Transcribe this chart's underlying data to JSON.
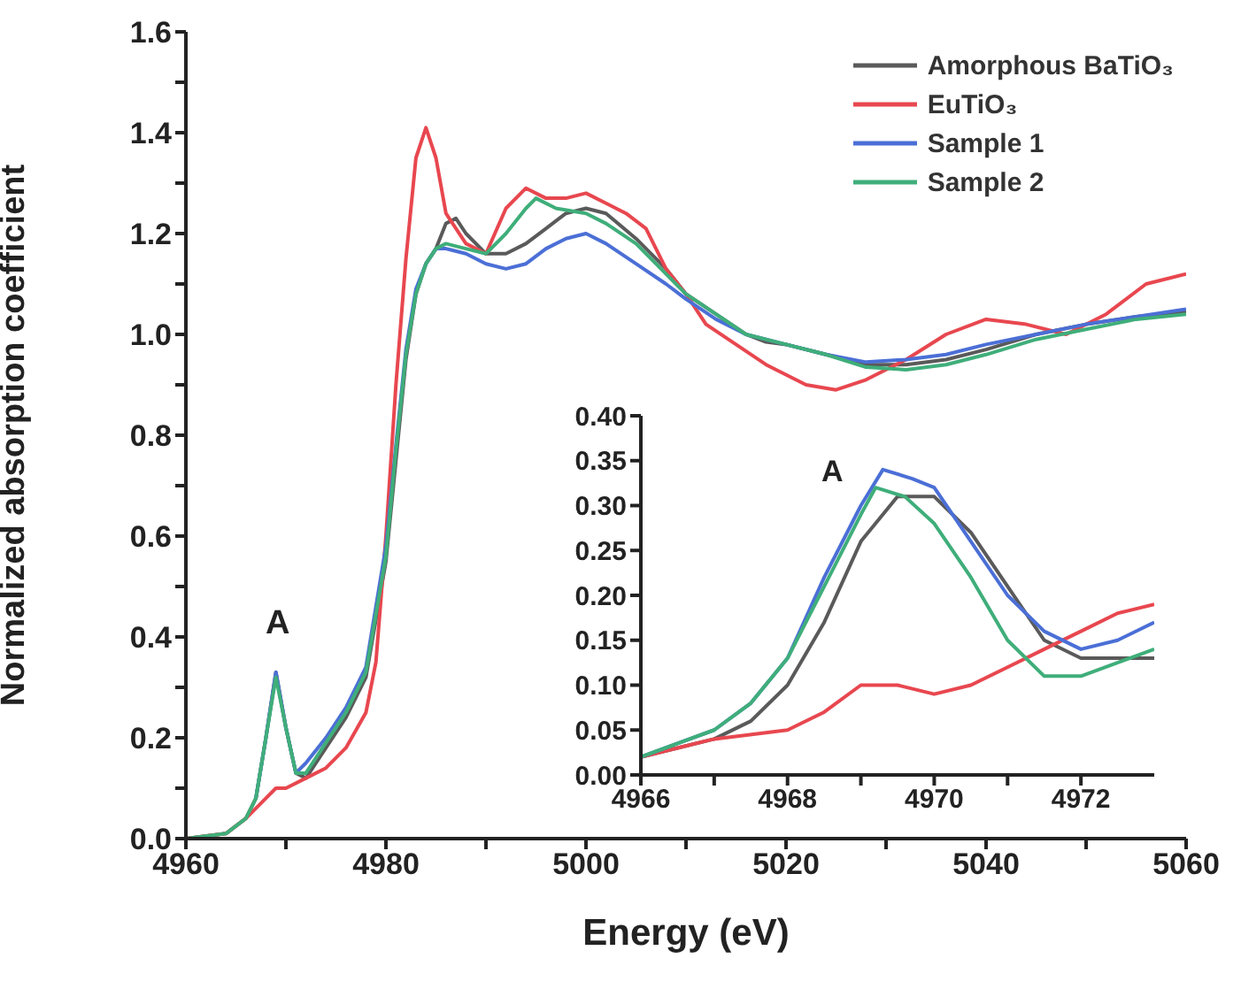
{
  "chart_data": [
    {
      "type": "line",
      "xlabel": "Energy (eV)",
      "ylabel": "Normalized  absorption coefficient",
      "xlim": [
        4960,
        5060
      ],
      "ylim": [
        0,
        1.6
      ],
      "xticks": [
        4960,
        {
          "value": 4970,
          "label": null
        },
        4980,
        {
          "value": 4990,
          "label": null
        },
        5000,
        {
          "value": 5010,
          "label": null
        },
        5020,
        {
          "value": 5030,
          "label": null
        },
        5040,
        {
          "value": 5050,
          "label": null
        },
        5060
      ],
      "yticks": [
        {
          "value": 0,
          "label": "0.0"
        },
        {
          "value": 0.1,
          "label": null
        },
        0.2,
        {
          "value": 0.3,
          "label": null
        },
        0.4,
        {
          "value": 0.5,
          "label": null
        },
        0.6,
        {
          "value": 0.7,
          "label": null
        },
        0.8,
        {
          "value": 0.9,
          "label": null
        },
        {
          "value": 1,
          "label": "1.0"
        },
        {
          "value": 1.1,
          "label": null
        },
        1.2,
        {
          "value": 1.3,
          "label": null
        },
        1.4,
        {
          "value": 1.5,
          "label": null
        },
        1.6
      ],
      "grid": false,
      "legend": "top right",
      "marker": "none",
      "line_style": "solid",
      "annotations": [
        "A"
      ],
      "series": [
        {
          "name": "Amorphous BaTiO₃",
          "color": "#5a5a5a",
          "x": [
            4960,
            4964,
            4966,
            4967,
            4968,
            4969,
            4970,
            4971,
            4972,
            4974,
            4976,
            4978,
            4980,
            4981,
            4982,
            4983,
            4984,
            4985,
            4986,
            4987,
            4988,
            4990,
            4992,
            4994,
            4996,
            4998,
            5000,
            5002,
            5005,
            5008,
            5010,
            5013,
            5016,
            5018,
            5020,
            5024,
            5028,
            5032,
            5036,
            5040,
            5045,
            5050,
            5055,
            5060
          ],
          "values": [
            0,
            0.01,
            0.04,
            0.08,
            0.2,
            0.33,
            0.22,
            0.13,
            0.12,
            0.18,
            0.24,
            0.32,
            0.55,
            0.75,
            0.95,
            1.08,
            1.14,
            1.17,
            1.22,
            1.23,
            1.2,
            1.16,
            1.16,
            1.18,
            1.21,
            1.24,
            1.25,
            1.24,
            1.19,
            1.13,
            1.08,
            1.04,
            1,
            0.985,
            0.98,
            0.96,
            0.94,
            0.94,
            0.95,
            0.97,
            1,
            1.02,
            1.035,
            1.045
          ]
        },
        {
          "name": "EuTiO₃",
          "color": "#e8474f",
          "x": [
            4960,
            4964,
            4966,
            4968,
            4969,
            4970,
            4972,
            4974,
            4976,
            4978,
            4979,
            4980,
            4981,
            4982,
            4983,
            4984,
            4985,
            4986,
            4988,
            4990,
            4992,
            4994,
            4996,
            4998,
            5000,
            5002,
            5004,
            5006,
            5008,
            5010,
            5012,
            5015,
            5018,
            5022,
            5025,
            5028,
            5032,
            5036,
            5040,
            5044,
            5048,
            5052,
            5056,
            5060
          ],
          "values": [
            0,
            0.01,
            0.04,
            0.08,
            0.1,
            0.1,
            0.12,
            0.14,
            0.18,
            0.25,
            0.35,
            0.6,
            0.9,
            1.15,
            1.35,
            1.41,
            1.35,
            1.24,
            1.18,
            1.16,
            1.25,
            1.29,
            1.27,
            1.27,
            1.28,
            1.26,
            1.24,
            1.21,
            1.13,
            1.08,
            1.02,
            0.98,
            0.94,
            0.9,
            0.89,
            0.91,
            0.95,
            1,
            1.03,
            1.02,
            1,
            1.04,
            1.1,
            1.12
          ]
        },
        {
          "name": "Sample 1",
          "color": "#4b6fd6",
          "x": [
            4967,
            4968,
            4969,
            4970,
            4971,
            4972,
            4974,
            4976,
            4978,
            4980,
            4981,
            4982,
            4983,
            4984,
            4985,
            4986,
            4988,
            4990,
            4992,
            4994,
            4996,
            4998,
            5000,
            5002,
            5005,
            5008,
            5010,
            5013,
            5016,
            5020,
            5024,
            5028,
            5032,
            5036,
            5040,
            5045,
            5050,
            5055,
            5060
          ],
          "values": [
            0.08,
            0.2,
            0.33,
            0.22,
            0.13,
            0.15,
            0.2,
            0.26,
            0.34,
            0.58,
            0.78,
            0.97,
            1.09,
            1.14,
            1.17,
            1.17,
            1.16,
            1.14,
            1.13,
            1.14,
            1.17,
            1.19,
            1.2,
            1.18,
            1.14,
            1.1,
            1.07,
            1.03,
            1,
            0.98,
            0.96,
            0.945,
            0.95,
            0.96,
            0.98,
            1,
            1.02,
            1.035,
            1.05
          ]
        },
        {
          "name": "Sample 2",
          "color": "#3fae7a",
          "x": [
            4960,
            4964,
            4966,
            4967,
            4968,
            4969,
            4970,
            4971,
            4972,
            4974,
            4976,
            4978,
            4980,
            4981,
            4982,
            4983,
            4984,
            4985,
            4986,
            4988,
            4990,
            4992,
            4994,
            4995,
            4997,
            5000,
            5002,
            5005,
            5008,
            5010,
            5013,
            5016,
            5020,
            5024,
            5028,
            5032,
            5036,
            5040,
            5045,
            5050,
            5055,
            5060
          ],
          "values": [
            0,
            0.01,
            0.04,
            0.08,
            0.2,
            0.32,
            0.22,
            0.13,
            0.13,
            0.19,
            0.25,
            0.33,
            0.56,
            0.77,
            0.96,
            1.08,
            1.14,
            1.17,
            1.18,
            1.17,
            1.16,
            1.2,
            1.25,
            1.27,
            1.25,
            1.24,
            1.22,
            1.18,
            1.12,
            1.08,
            1.04,
            1,
            0.98,
            0.96,
            0.935,
            0.93,
            0.94,
            0.96,
            0.99,
            1.01,
            1.03,
            1.04
          ]
        }
      ]
    },
    {
      "type": "line",
      "xlim": [
        4966,
        4973
      ],
      "ylim": [
        0,
        0.4
      ],
      "xticks": [
        4966,
        {
          "value": 4967,
          "label": null
        },
        4968,
        {
          "value": 4969,
          "label": null
        },
        4970,
        {
          "value": 4971,
          "label": null
        },
        4972
      ],
      "yticks": [
        {
          "value": 0,
          "label": "0.00"
        },
        {
          "value": 0.05,
          "label": "0.05"
        },
        {
          "value": 0.1,
          "label": "0.10"
        },
        {
          "value": 0.15,
          "label": "0.15"
        },
        {
          "value": 0.2,
          "label": "0.20"
        },
        {
          "value": 0.25,
          "label": "0.25"
        },
        {
          "value": 0.3,
          "label": "0.30"
        },
        {
          "value": 0.35,
          "label": "0.35"
        },
        {
          "value": 0.4,
          "label": "0.40"
        }
      ],
      "grid": false,
      "marker": "none",
      "line_style": "solid",
      "annotations": [
        "A"
      ],
      "series": [
        {
          "color": "#5a5a5a",
          "x": [
            4966,
            4967,
            4967.5,
            4968,
            4968.5,
            4969,
            4969.5,
            4970,
            4970.5,
            4971,
            4971.5,
            4972,
            4973
          ],
          "values": [
            0.02,
            0.04,
            0.06,
            0.1,
            0.17,
            0.26,
            0.31,
            0.31,
            0.27,
            0.21,
            0.15,
            0.13,
            0.13
          ]
        },
        {
          "color": "#e8474f",
          "x": [
            4966,
            4967,
            4968,
            4968.5,
            4969,
            4969.5,
            4970,
            4970.5,
            4971,
            4971.5,
            4972,
            4972.5,
            4973
          ],
          "values": [
            0.02,
            0.04,
            0.05,
            0.07,
            0.1,
            0.1,
            0.09,
            0.1,
            0.12,
            0.14,
            0.16,
            0.18,
            0.19
          ]
        },
        {
          "color": "#4b6fd6",
          "x": [
            4966,
            4967,
            4967.5,
            4968,
            4968.5,
            4969,
            4969.3,
            4969.7,
            4970,
            4970.5,
            4971,
            4971.5,
            4972,
            4972.5,
            4973
          ],
          "values": [
            0.02,
            0.05,
            0.08,
            0.13,
            0.22,
            0.3,
            0.34,
            0.33,
            0.32,
            0.26,
            0.2,
            0.16,
            0.14,
            0.15,
            0.17
          ]
        },
        {
          "color": "#3fae7a",
          "x": [
            4966,
            4967,
            4967.5,
            4968,
            4968.5,
            4969,
            4969.2,
            4969.6,
            4970,
            4970.5,
            4971,
            4971.5,
            4972,
            4973
          ],
          "values": [
            0.02,
            0.05,
            0.08,
            0.13,
            0.21,
            0.29,
            0.32,
            0.31,
            0.28,
            0.22,
            0.15,
            0.11,
            0.11,
            0.14
          ]
        }
      ]
    }
  ]
}
